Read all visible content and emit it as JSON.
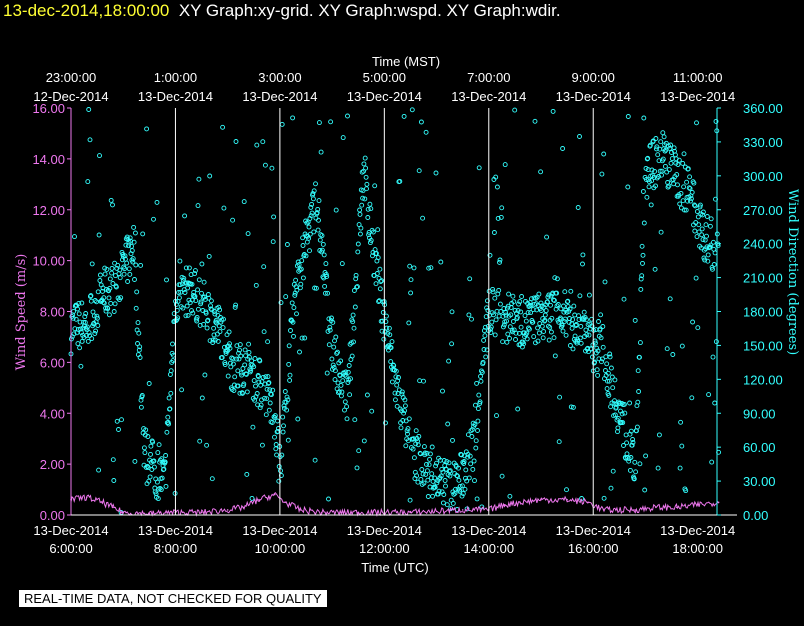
{
  "header": {
    "datetime": "13-dec-2014,18:00:00",
    "graphs": "XY Graph:xy-grid.  XY Graph:wspd.  XY Graph:wdir."
  },
  "footer": {
    "notice": "REAL-TIME DATA, NOT CHECKED FOR QUALITY"
  },
  "colors": {
    "wspd": "#ee77ee",
    "wdir": "#33ffff",
    "grid": "#ffffff",
    "background": "#000000"
  },
  "chart_data": {
    "type": "scatter",
    "top_axis": {
      "label": "Time (MST)",
      "ticks": [
        {
          "time": "23:00:00",
          "date": "12-Dec-2014"
        },
        {
          "time": "1:00:00",
          "date": "13-Dec-2014"
        },
        {
          "time": "3:00:00",
          "date": "13-Dec-2014"
        },
        {
          "time": "5:00:00",
          "date": "13-Dec-2014"
        },
        {
          "time": "7:00:00",
          "date": "13-Dec-2014"
        },
        {
          "time": "9:00:00",
          "date": "13-Dec-2014"
        },
        {
          "time": "11:00:00",
          "date": "13-Dec-2014"
        }
      ]
    },
    "bottom_axis": {
      "label": "Time (UTC)",
      "ticks": [
        {
          "time": "6:00:00",
          "date": "13-Dec-2014"
        },
        {
          "time": "8:00:00",
          "date": "13-Dec-2014"
        },
        {
          "time": "10:00:00",
          "date": "13-Dec-2014"
        },
        {
          "time": "12:00:00",
          "date": "13-Dec-2014"
        },
        {
          "time": "14:00:00",
          "date": "13-Dec-2014"
        },
        {
          "time": "16:00:00",
          "date": "13-Dec-2014"
        },
        {
          "time": "18:00:00",
          "date": "13-Dec-2014"
        }
      ],
      "range_hours": [
        6,
        18.4
      ]
    },
    "left_axis": {
      "label": "Wind Speed (m/s)",
      "range": [
        0,
        16
      ],
      "ticks": [
        "0.00",
        "2.00",
        "4.00",
        "6.00",
        "8.00",
        "10.00",
        "12.00",
        "14.00",
        "16.00"
      ]
    },
    "right_axis": {
      "label": "Wind Direction (degrees)",
      "range": [
        0,
        360
      ],
      "ticks": [
        "0.00",
        "30.00",
        "60.00",
        "90.00",
        "120.00",
        "150.00",
        "180.00",
        "210.00",
        "240.00",
        "270.00",
        "300.00",
        "330.00",
        "360.00"
      ]
    },
    "grid_hours": [
      8,
      10,
      12,
      14,
      16
    ],
    "series": [
      {
        "key": "wspd",
        "axis": "left",
        "marker": "line",
        "points": [
          [
            6.0,
            0.6
          ],
          [
            6.3,
            0.7
          ],
          [
            6.6,
            0.5
          ],
          [
            6.8,
            0.3
          ],
          [
            7.0,
            0.1
          ],
          [
            7.5,
            0.05
          ],
          [
            8.0,
            0.1
          ],
          [
            8.5,
            0.1
          ],
          [
            9.0,
            0.2
          ],
          [
            9.3,
            0.3
          ],
          [
            9.6,
            0.6
          ],
          [
            9.9,
            0.8
          ],
          [
            10.1,
            0.5
          ],
          [
            10.4,
            0.2
          ],
          [
            10.8,
            0.1
          ],
          [
            11.5,
            0.1
          ],
          [
            12.5,
            0.1
          ],
          [
            13.5,
            0.2
          ],
          [
            14.0,
            0.2
          ],
          [
            14.3,
            0.4
          ],
          [
            14.6,
            0.5
          ],
          [
            15.0,
            0.6
          ],
          [
            15.5,
            0.6
          ],
          [
            15.9,
            0.5
          ],
          [
            16.2,
            0.2
          ],
          [
            16.8,
            0.2
          ],
          [
            17.2,
            0.3
          ],
          [
            17.6,
            0.3
          ],
          [
            18.0,
            0.4
          ],
          [
            18.4,
            0.5
          ]
        ]
      },
      {
        "key": "wdir",
        "axis": "right",
        "marker": "circle",
        "trend": [
          [
            6.0,
            165
          ],
          [
            6.3,
            170
          ],
          [
            6.6,
            195
          ],
          [
            6.8,
            200
          ],
          [
            7.0,
            215
          ],
          [
            7.2,
            240
          ],
          [
            7.4,
            60
          ],
          [
            7.6,
            40
          ],
          [
            7.8,
            30
          ],
          [
            8.0,
            190
          ],
          [
            8.3,
            200
          ],
          [
            8.6,
            180
          ],
          [
            8.9,
            160
          ],
          [
            9.1,
            130
          ],
          [
            9.4,
            130
          ],
          [
            9.7,
            110
          ],
          [
            9.9,
            90
          ],
          [
            10.0,
            40
          ],
          [
            10.3,
            200
          ],
          [
            10.7,
            280
          ],
          [
            11.0,
            150
          ],
          [
            11.3,
            100
          ],
          [
            11.6,
            300
          ],
          [
            11.9,
            200
          ],
          [
            12.2,
            120
          ],
          [
            12.5,
            60
          ],
          [
            12.8,
            40
          ],
          [
            13.1,
            30
          ],
          [
            13.4,
            25
          ],
          [
            13.7,
            60
          ],
          [
            14.0,
            180
          ],
          [
            14.3,
            175
          ],
          [
            14.7,
            170
          ],
          [
            15.0,
            175
          ],
          [
            15.4,
            180
          ],
          [
            15.8,
            170
          ],
          [
            16.0,
            150
          ],
          [
            16.2,
            140
          ],
          [
            16.5,
            90
          ],
          [
            16.8,
            40
          ],
          [
            17.0,
            300
          ],
          [
            17.3,
            320
          ],
          [
            17.6,
            300
          ],
          [
            17.9,
            280
          ],
          [
            18.1,
            250
          ],
          [
            18.4,
            230
          ]
        ]
      }
    ]
  }
}
